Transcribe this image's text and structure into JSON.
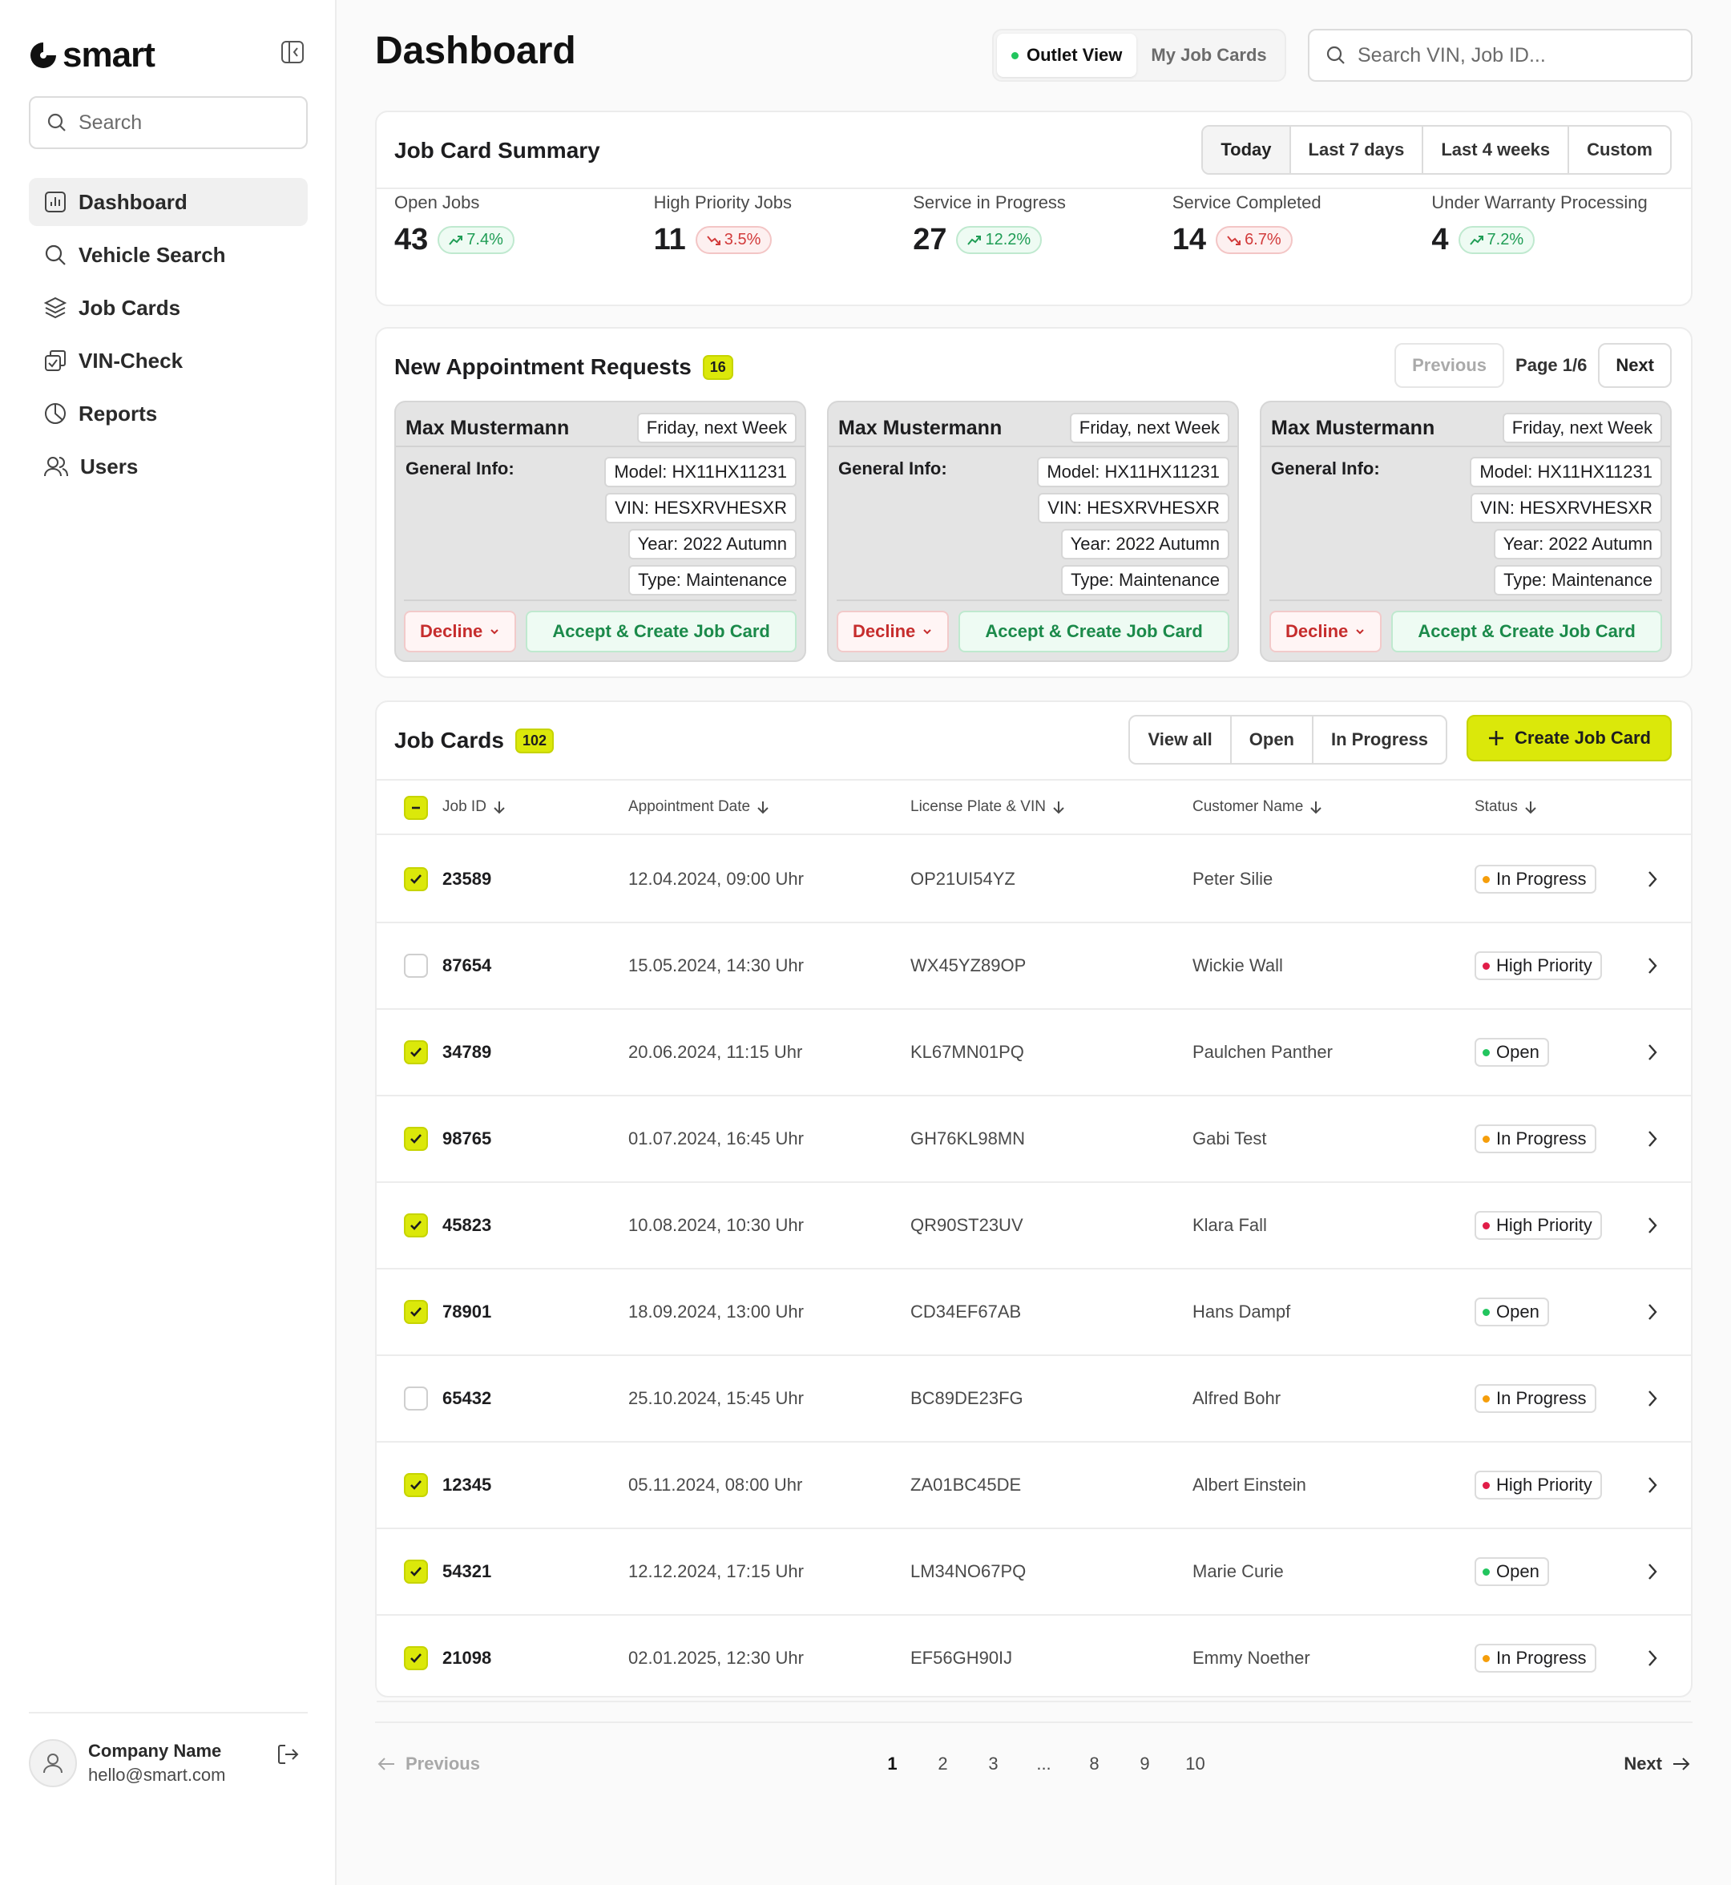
{
  "brand": {
    "name": "smart"
  },
  "sidebar": {
    "search_placeholder": "Search",
    "nav": [
      {
        "label": "Dashboard",
        "icon": "bar-chart-icon",
        "active": true
      },
      {
        "label": "Vehicle Search",
        "icon": "search-icon"
      },
      {
        "label": "Job Cards",
        "icon": "layers-icon"
      },
      {
        "label": "VIN-Check",
        "icon": "check-copy-icon"
      },
      {
        "label": "Reports",
        "icon": "pie-chart-icon"
      },
      {
        "label": "Users",
        "icon": "users-icon"
      }
    ],
    "user": {
      "name": "Company Name",
      "email": "hello@smart.com"
    }
  },
  "header": {
    "title": "Dashboard",
    "view_toggle": [
      {
        "label": "Outlet View",
        "active": true
      },
      {
        "label": "My Job Cards"
      }
    ],
    "search_placeholder": "Search VIN, Job ID..."
  },
  "summary": {
    "title": "Job Card Summary",
    "ranges": [
      "Today",
      "Last 7 days",
      "Last 4 weeks",
      "Custom"
    ],
    "active_range": "Today",
    "stats": [
      {
        "label": "Open Jobs",
        "value": "43",
        "trend": "7.4%",
        "dir": "up"
      },
      {
        "label": "High Priority Jobs",
        "value": "11",
        "trend": "3.5%",
        "dir": "down"
      },
      {
        "label": "Service in Progress",
        "value": "27",
        "trend": "12.2%",
        "dir": "up"
      },
      {
        "label": "Service Completed",
        "value": "14",
        "trend": "6.7%",
        "dir": "down"
      },
      {
        "label": "Under Warranty Processing",
        "value": "4",
        "trend": "7.2%",
        "dir": "up"
      }
    ]
  },
  "appointments": {
    "title": "New Appointment Requests",
    "count": "16",
    "prev_label": "Previous",
    "page_label": "Page 1/6",
    "next_label": "Next",
    "items": [
      {
        "name": "Max Mustermann",
        "when": "Friday, next Week",
        "info_label": "General Info:",
        "model": "Model: HX11HX11231",
        "vin": "VIN: HESXRVHESXR",
        "year": "Year: 2022 Autumn",
        "type": "Type: Maintenance",
        "decline": "Decline",
        "accept": "Accept & Create Job Card"
      },
      {
        "name": "Max Mustermann",
        "when": "Friday, next Week",
        "info_label": "General Info:",
        "model": "Model: HX11HX11231",
        "vin": "VIN: HESXRVHESXR",
        "year": "Year: 2022 Autumn",
        "type": "Type: Maintenance",
        "decline": "Decline",
        "accept": "Accept & Create Job Card"
      },
      {
        "name": "Max Mustermann",
        "when": "Friday, next Week",
        "info_label": "General Info:",
        "model": "Model: HX11HX11231",
        "vin": "VIN: HESXRVHESXR",
        "year": "Year: 2022 Autumn",
        "type": "Type: Maintenance",
        "decline": "Decline",
        "accept": "Accept & Create Job Card"
      }
    ]
  },
  "jobcards": {
    "title": "Job Cards",
    "count": "102",
    "filters": [
      "View all",
      "Open",
      "In Progress"
    ],
    "create_label": "Create Job Card",
    "columns": [
      "Job ID",
      "Appointment Date",
      "License Plate & VIN",
      "Customer Name",
      "Status"
    ],
    "status_colors": {
      "In Progress": "#f59e0b",
      "High Priority": "#e11d48",
      "Open": "#22c55e"
    },
    "rows": [
      {
        "checked": true,
        "id": "23589",
        "date": "12.04.2024, 09:00 Uhr",
        "plate": "OP21UI54YZ",
        "customer": "Peter Silie",
        "status": "In Progress"
      },
      {
        "checked": false,
        "id": "87654",
        "date": "15.05.2024, 14:30 Uhr",
        "plate": "WX45YZ89OP",
        "customer": "Wickie Wall",
        "status": "High Priority"
      },
      {
        "checked": true,
        "id": "34789",
        "date": "20.06.2024, 11:15 Uhr",
        "plate": "KL67MN01PQ",
        "customer": "Paulchen Panther",
        "status": "Open"
      },
      {
        "checked": true,
        "id": "98765",
        "date": "01.07.2024, 16:45 Uhr",
        "plate": "GH76KL98MN",
        "customer": "Gabi Test",
        "status": "In Progress"
      },
      {
        "checked": true,
        "id": "45823",
        "date": "10.08.2024, 10:30 Uhr",
        "plate": "QR90ST23UV",
        "customer": "Klara Fall",
        "status": "High Priority"
      },
      {
        "checked": true,
        "id": "78901",
        "date": "18.09.2024, 13:00 Uhr",
        "plate": "CD34EF67AB",
        "customer": "Hans Dampf",
        "status": "Open"
      },
      {
        "checked": false,
        "id": "65432",
        "date": "25.10.2024, 15:45 Uhr",
        "plate": "BC89DE23FG",
        "customer": "Alfred Bohr",
        "status": "In Progress"
      },
      {
        "checked": true,
        "id": "12345",
        "date": "05.11.2024, 08:00 Uhr",
        "plate": "ZA01BC45DE",
        "customer": "Albert Einstein",
        "status": "High Priority"
      },
      {
        "checked": true,
        "id": "54321",
        "date": "12.12.2024, 17:15 Uhr",
        "plate": "LM34NO67PQ",
        "customer": "Marie Curie",
        "status": "Open"
      },
      {
        "checked": true,
        "id": "21098",
        "date": "02.01.2025, 12:30 Uhr",
        "plate": "EF56GH90IJ",
        "customer": "Emmy Noether",
        "status": "In Progress"
      }
    ]
  },
  "pagination": {
    "prev_label": "Previous",
    "next_label": "Next",
    "pages": [
      "1",
      "2",
      "3",
      "...",
      "8",
      "9",
      "10"
    ],
    "current": "1"
  }
}
